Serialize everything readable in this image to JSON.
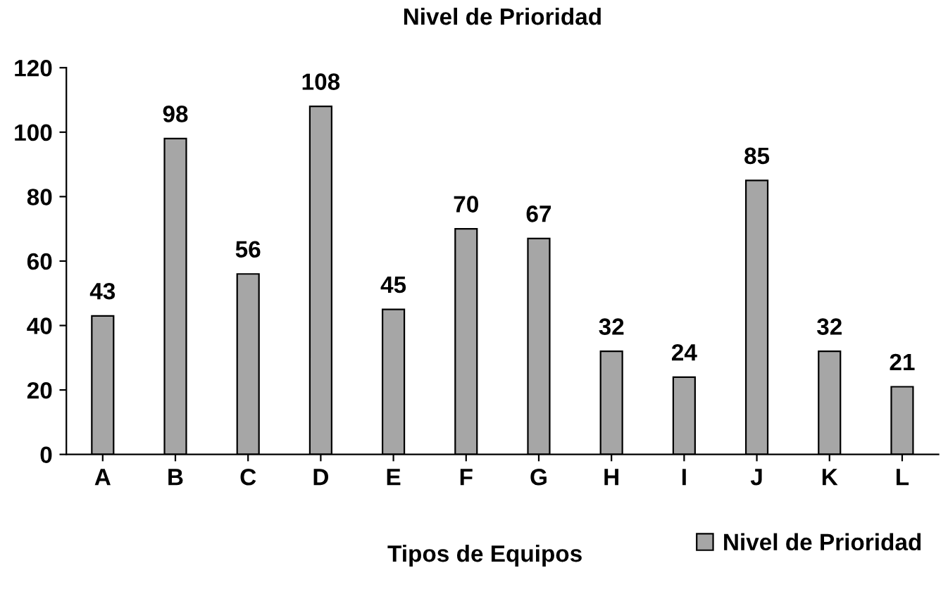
{
  "chart_data": {
    "type": "bar",
    "title": "Nivel de Prioridad",
    "xlabel": "Tipos de Equipos",
    "categories": [
      "A",
      "B",
      "C",
      "D",
      "E",
      "F",
      "G",
      "H",
      "I",
      "J",
      "K",
      "L"
    ],
    "series": [
      {
        "name": "Nivel de Prioridad",
        "color": "#a6a6a6",
        "values": [
          43,
          98,
          56,
          108,
          45,
          70,
          67,
          32,
          24,
          85,
          32,
          21
        ]
      }
    ],
    "ylim": [
      0,
      120
    ],
    "yticks": [
      0,
      20,
      40,
      60,
      80,
      100,
      120
    ],
    "grid": false,
    "legend": "bottom right",
    "data_labels": true
  }
}
